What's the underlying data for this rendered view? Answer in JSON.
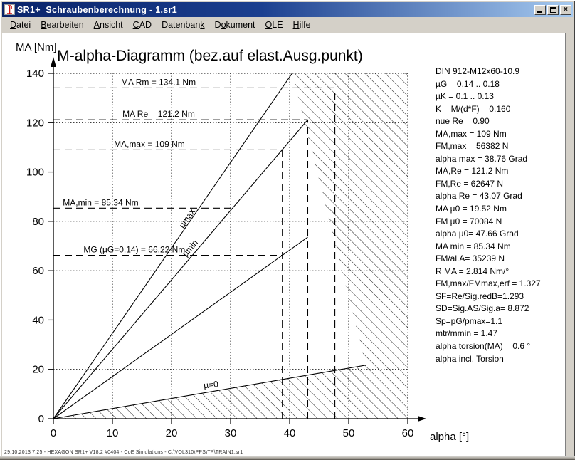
{
  "window": {
    "title": "SR1+  Schraubenberechnung - 1.sr1",
    "buttons": {
      "minimize": "minimize",
      "maximize": "maximize",
      "close": "×"
    }
  },
  "menu": {
    "items": [
      {
        "label": "Datei",
        "hotkey": "D"
      },
      {
        "label": "Bearbeiten",
        "hotkey": "B"
      },
      {
        "label": "Ansicht",
        "hotkey": "A"
      },
      {
        "label": "CAD",
        "hotkey": "C"
      },
      {
        "label": "Datenbank",
        "hotkey": "k"
      },
      {
        "label": "Dokument",
        "hotkey": "o"
      },
      {
        "label": "OLE",
        "hotkey": "O"
      },
      {
        "label": "Hilfe",
        "hotkey": "H"
      }
    ]
  },
  "right_panel": {
    "lines": [
      "DIN 912-M12x60-10.9",
      "µG = 0.14 .. 0.18",
      "µK = 0.1 .. 0.13",
      "K = M/(d*F) = 0.160",
      "nue Re = 0.90",
      "MA,max = 109 Nm",
      "FM,max = 56382 N",
      "alpha max = 38.76 Grad",
      "MA,Re = 121.2 Nm",
      "FM,Re = 62647 N",
      "alpha Re = 43.07 Grad",
      "MA µ0 = 19.52 Nm",
      "FM µ0 = 70084 N",
      "alpha µ0= 47.66 Grad",
      "MA min = 85.34 Nm",
      "FM/al.A= 35239 N",
      "R MA = 2.814 Nm/°",
      "FM,max/FMmax,erf = 1.327",
      "SF=Re/Sig.redB=1.293",
      "SD=Sig.AS/Sig.a= 8.872",
      "Sp=pG/pmax=1.1",
      "mtr/mmin = 1.47",
      "alpha torsion(MA) = 0.6 °",
      "alpha incl. Torsion"
    ]
  },
  "status": {
    "text": "29.10.2013 7:25 - HEXAGON SR1+ V18.2 #0404 - CoE Simulations - C:\\VOL310\\PPS\\TP\\TRAIN1.sr1"
  },
  "chart_data": {
    "type": "line",
    "title": "M-alpha-Diagramm (bez.auf elast.Ausg.punkt)",
    "xlabel": "alpha [°]",
    "ylabel": "MA [Nm]",
    "xlim": [
      0,
      62
    ],
    "ylim": [
      0,
      145
    ],
    "x_ticks": [
      0,
      10,
      20,
      30,
      40,
      50,
      60
    ],
    "y_ticks": [
      0,
      20,
      40,
      60,
      80,
      100,
      120,
      140
    ],
    "grid": "dotted",
    "series": [
      {
        "name": "mu-max-line",
        "points": [
          [
            0,
            0
          ],
          [
            40.43,
            140
          ]
        ],
        "label": {
          "text": "µmax",
          "x": 22,
          "y": 77,
          "angle": -55
        }
      },
      {
        "name": "mu-min-line",
        "points": [
          [
            0,
            0
          ],
          [
            43.07,
            121.2
          ]
        ],
        "label": {
          "text": "µmin",
          "x": 22.5,
          "y": 65.5,
          "angle": -50
        }
      },
      {
        "name": "mg-thread-torque-line",
        "points": [
          [
            0,
            0
          ],
          [
            43.07,
            73.6
          ]
        ]
      },
      {
        "name": "mu-zero-line",
        "points": [
          [
            0,
            0
          ],
          [
            52.9,
            21.7
          ]
        ],
        "label": {
          "text": "µ=0",
          "x": 25.5,
          "y": 12.3,
          "angle": -6
        }
      }
    ],
    "hlines": [
      {
        "text": "MA Rm = 134.1 Nm",
        "y": 134.1,
        "x_from": 0,
        "x_to": 47.66,
        "label_x": 11.45
      },
      {
        "text": "MA Re = 121.2 Nm",
        "y": 121.2,
        "x_from": 0,
        "x_to": 43.07,
        "label_x": 11.7
      },
      {
        "text": "MA,max = 109 Nm",
        "y": 109,
        "x_from": 0,
        "x_to": 38.76,
        "label_x": 10.25
      },
      {
        "text": "MA,min = 85.34 Nm",
        "y": 85.34,
        "x_from": 0,
        "x_to": 30.4,
        "label_x": 1.6
      },
      {
        "text": "MG (µG=0.14) = 66.22 Nm",
        "y": 66.22,
        "x_from": 0,
        "x_to": 38.76,
        "label_x": 5.1
      }
    ],
    "vlines": [
      {
        "x": 38.76,
        "y_to": 109
      },
      {
        "x": 43.07,
        "y_to": 121.2
      },
      {
        "x": 47.66,
        "y_to": 134.1
      }
    ],
    "hatch_region": [
      [
        0,
        0
      ],
      [
        52.9,
        21.7
      ],
      [
        40.43,
        140
      ],
      [
        60,
        140
      ],
      [
        60,
        0
      ]
    ]
  }
}
